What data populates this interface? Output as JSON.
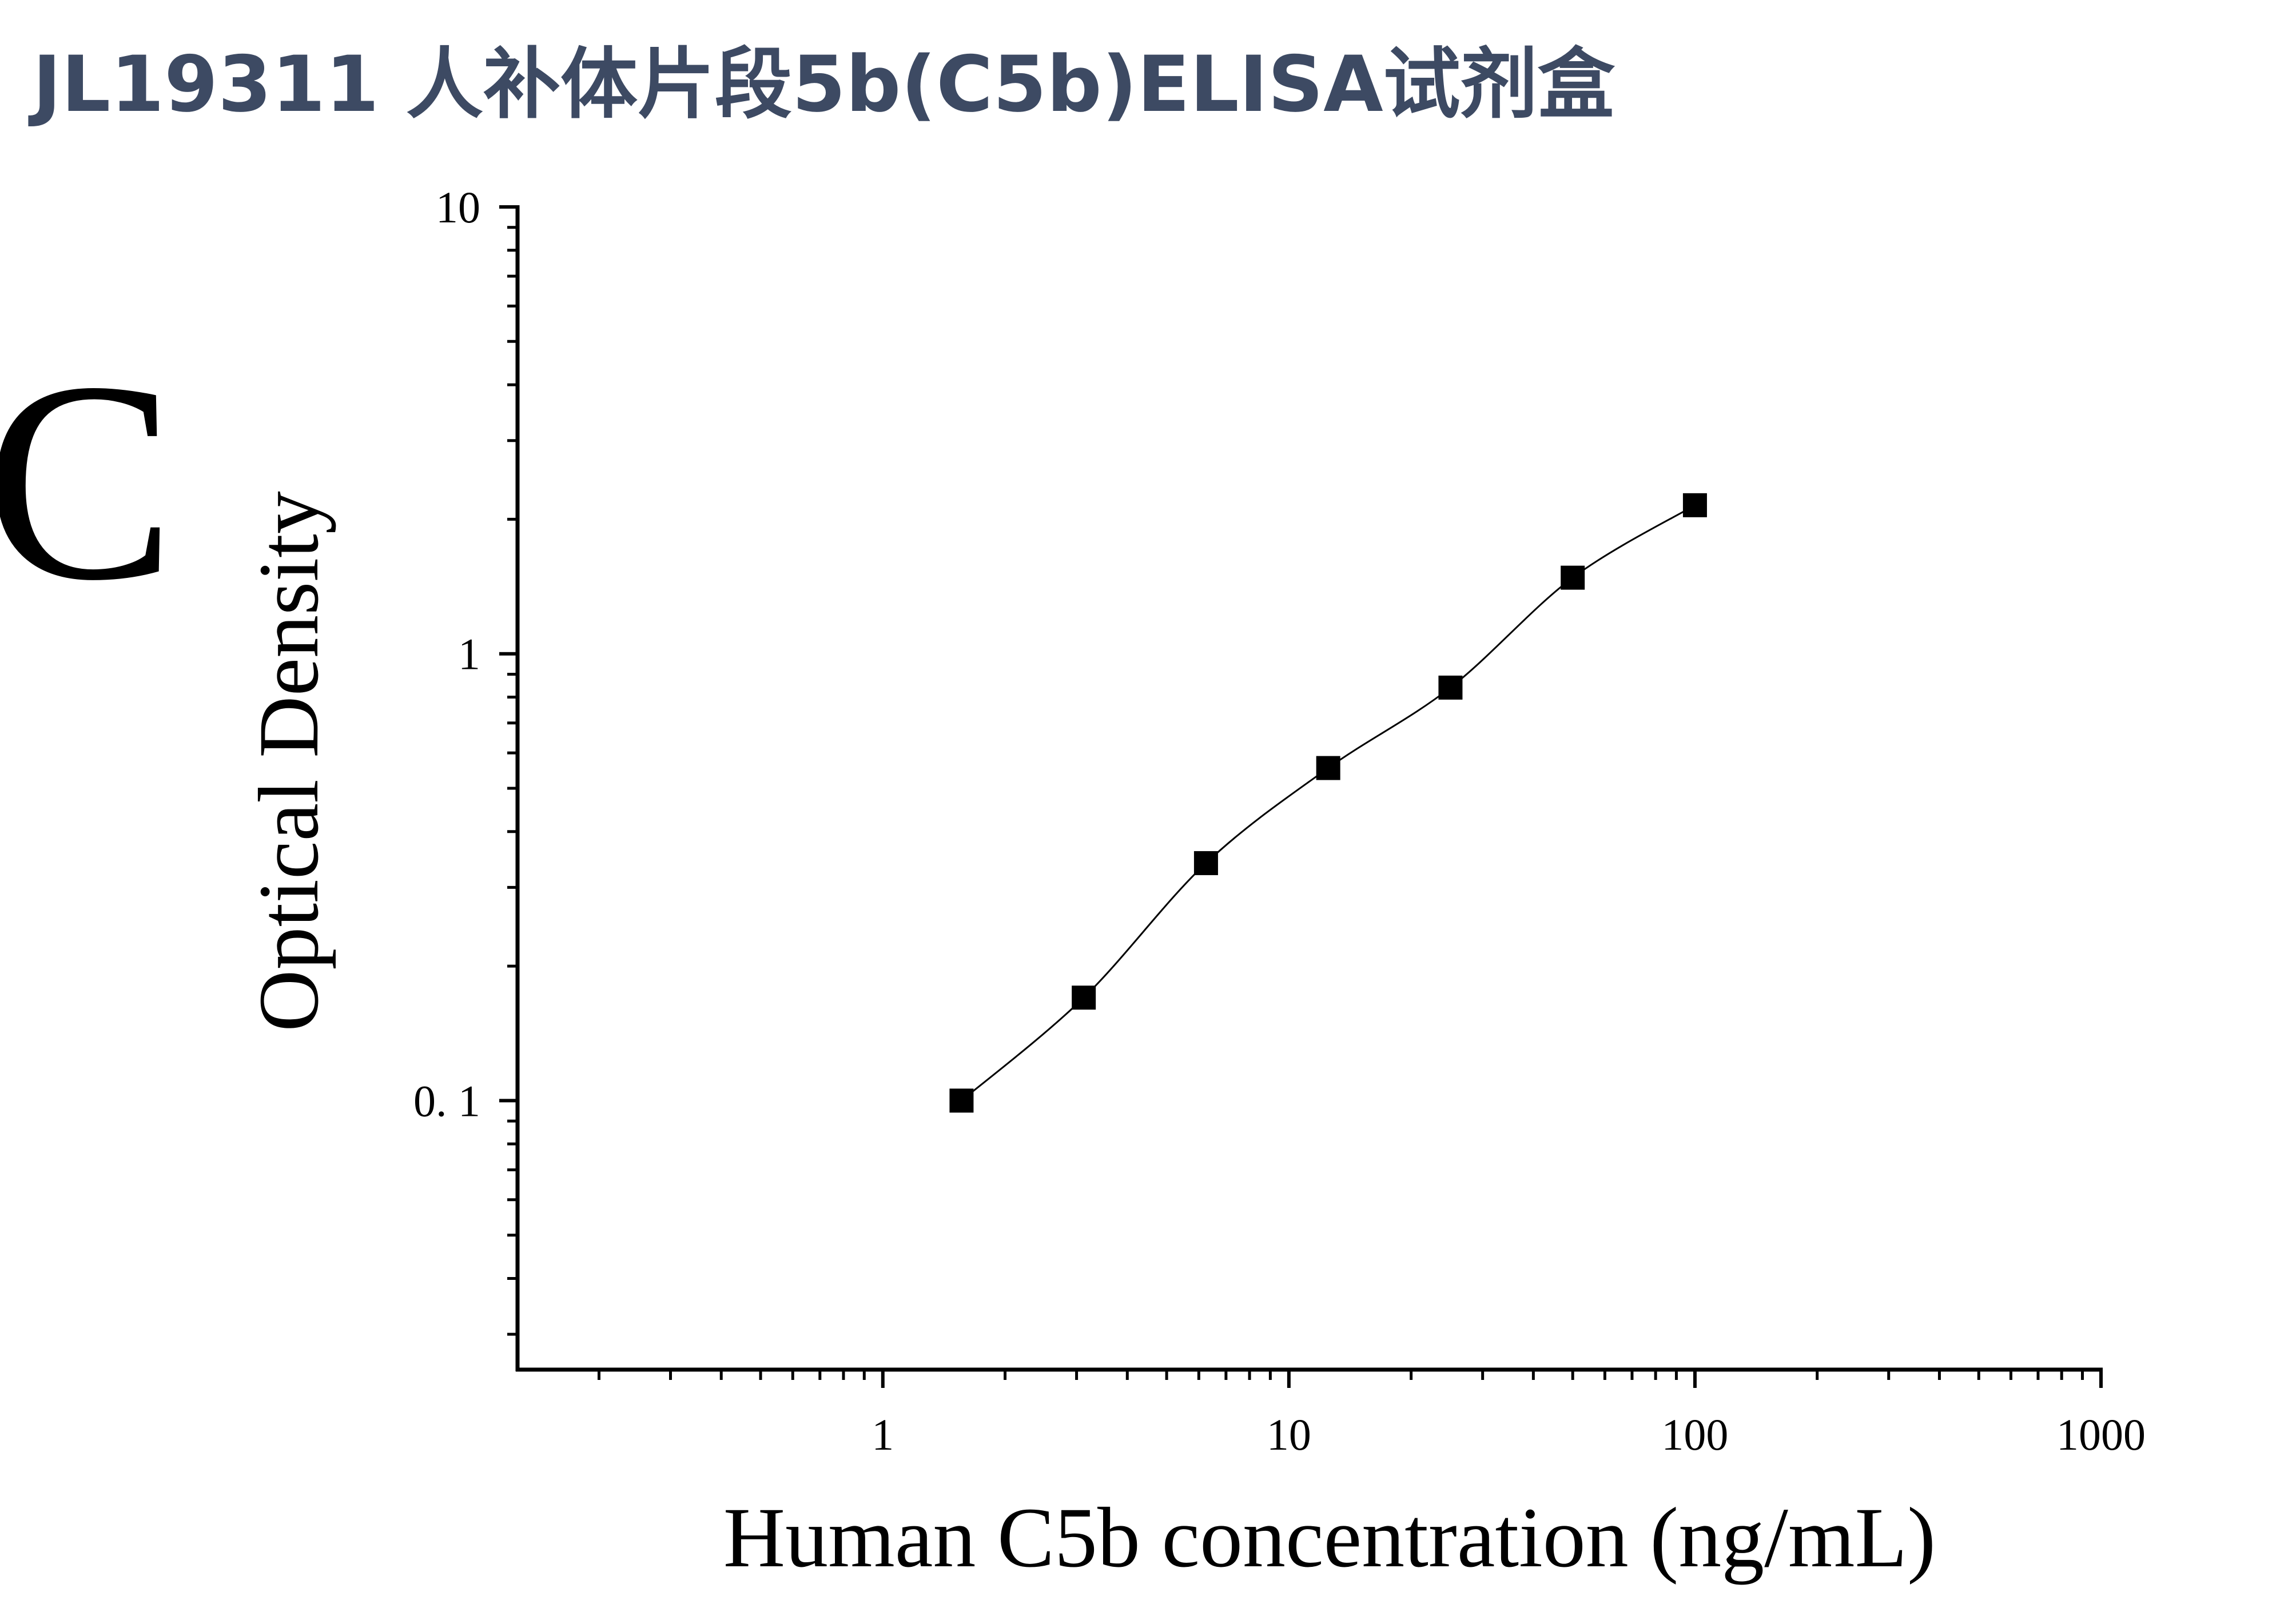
{
  "page_title": "JL19311 人补体片段5b(C5b)ELISA试剂盒",
  "chart_data": {
    "type": "scatter",
    "panel_label": "C",
    "x_label": "Human C5b concentration (ng/mL)",
    "y_label": "Optical Density",
    "x_log": true,
    "y_log": true,
    "xlim": [
      0.126,
      1000
    ],
    "ylim": [
      0.025,
      10
    ],
    "xticks": [
      1,
      10,
      100,
      1000
    ],
    "yticks": [
      {
        "value": 0.1,
        "label": "0. 1"
      },
      1,
      10
    ],
    "fit_line": true,
    "series": [
      {
        "color": "#000000",
        "x": [
          1.5625,
          3.125,
          6.25,
          12.5,
          25,
          50,
          100
        ],
        "values": [
          0.1,
          0.17,
          0.34,
          0.555,
          0.84,
          1.48,
          2.15
        ]
      }
    ]
  }
}
